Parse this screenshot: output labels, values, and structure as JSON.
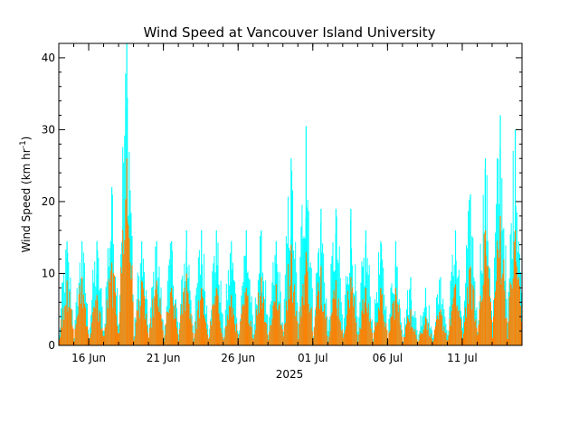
{
  "chart_data": {
    "type": "area",
    "title": "Wind Speed at Vancouver Island University",
    "xlabel": "2025",
    "ylabel": "Wind Speed (km hr",
    "ylabel_sup": "-1",
    "ylabel_close": ")",
    "ylim": [
      0,
      42
    ],
    "xlim": [
      "2025-06-14",
      "2025-07-15"
    ],
    "yticks": [
      0,
      10,
      20,
      30,
      40
    ],
    "xticks": [
      {
        "label": "16 Jun",
        "date": "2025-06-16"
      },
      {
        "label": "21 Jun",
        "date": "2025-06-21"
      },
      {
        "label": "26 Jun",
        "date": "2025-06-26"
      },
      {
        "label": "01 Jul",
        "date": "2025-07-01"
      },
      {
        "label": "06 Jul",
        "date": "2025-07-06"
      },
      {
        "label": "11 Jul",
        "date": "2025-07-11"
      }
    ],
    "grid": false,
    "series": [
      {
        "color": "#00ffff",
        "x": [
          "2025-06-14",
          "2025-06-15",
          "2025-06-16",
          "2025-06-17",
          "2025-06-18",
          "2025-06-19",
          "2025-06-20",
          "2025-06-21",
          "2025-06-22",
          "2025-06-23",
          "2025-06-24",
          "2025-06-25",
          "2025-06-26",
          "2025-06-27",
          "2025-06-28",
          "2025-06-29",
          "2025-06-30",
          "2025-07-01",
          "2025-07-02",
          "2025-07-03",
          "2025-07-04",
          "2025-07-05",
          "2025-07-06",
          "2025-07-07",
          "2025-07-08",
          "2025-07-09",
          "2025-07-10",
          "2025-07-11",
          "2025-07-12",
          "2025-07-13",
          "2025-07-14"
        ],
        "values": [
          14.5,
          14.5,
          14.5,
          22,
          42,
          14.5,
          14.5,
          14.5,
          16,
          16,
          16,
          14.5,
          16,
          16,
          14.5,
          26,
          30.5,
          19,
          19,
          19,
          16,
          14.5,
          14.5,
          9.5,
          8,
          9.5,
          16,
          21,
          26,
          32,
          30
        ]
      },
      {
        "color": "#ff7f00",
        "x": [
          "2025-06-14",
          "2025-06-15",
          "2025-06-16",
          "2025-06-17",
          "2025-06-18",
          "2025-06-19",
          "2025-06-20",
          "2025-06-21",
          "2025-06-22",
          "2025-06-23",
          "2025-06-24",
          "2025-06-25",
          "2025-06-26",
          "2025-06-27",
          "2025-06-28",
          "2025-06-29",
          "2025-06-30",
          "2025-07-01",
          "2025-07-02",
          "2025-07-03",
          "2025-07-04",
          "2025-07-05",
          "2025-07-06",
          "2025-07-07",
          "2025-07-08",
          "2025-07-09",
          "2025-07-10",
          "2025-07-11",
          "2025-07-12",
          "2025-07-13",
          "2025-07-14"
        ],
        "values": [
          9,
          9.5,
          7,
          11.5,
          26,
          9,
          9,
          8,
          10,
          8,
          8,
          7,
          8,
          9.5,
          8.5,
          14,
          13,
          11,
          9,
          9.5,
          8,
          8,
          8,
          5,
          4,
          5,
          8.5,
          11,
          16,
          18,
          16
        ]
      }
    ]
  }
}
